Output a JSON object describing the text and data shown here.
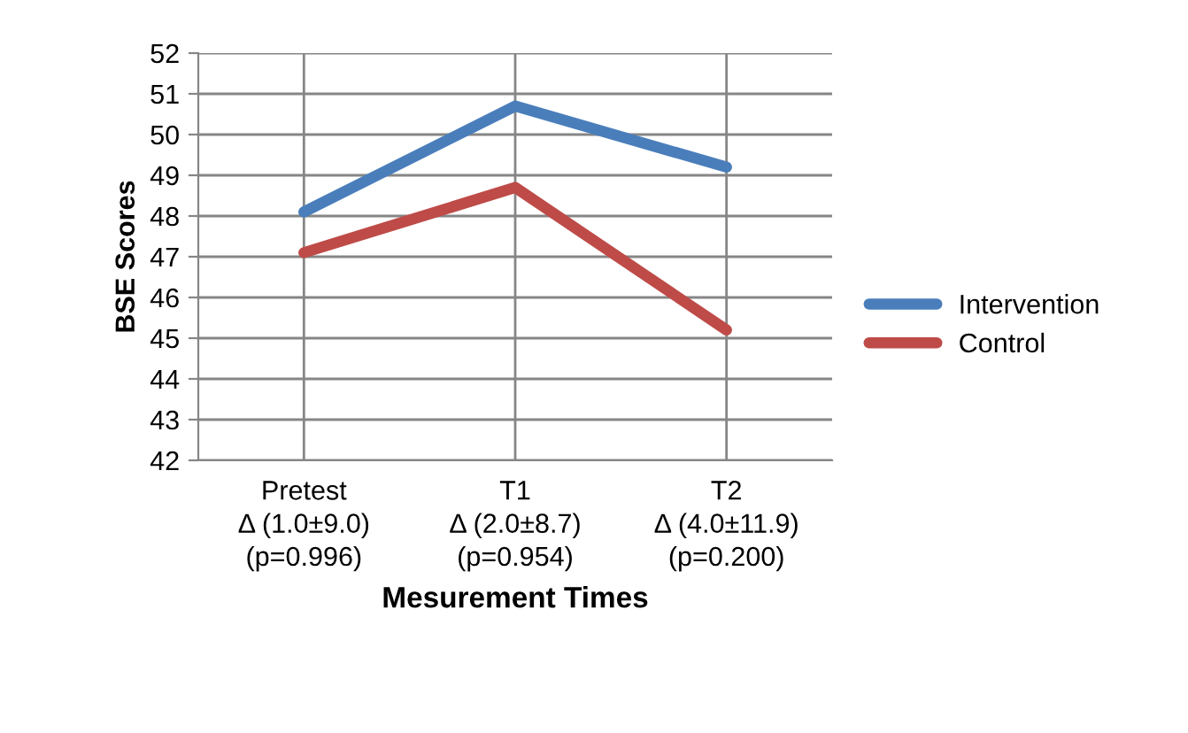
{
  "chart_data": {
    "type": "line",
    "categories": [
      "Pretest\nΔ (1.0±9.0)\n(p=0.996)",
      "T1\nΔ (2.0±8.7)\n(p=0.954)",
      "T2\nΔ (4.0±11.9)\n(p=0.200)"
    ],
    "series": [
      {
        "name": "Intervention",
        "color": "#4a7ebb",
        "values": [
          48.1,
          50.7,
          49.2
        ]
      },
      {
        "name": "Control",
        "color": "#be4b48",
        "values": [
          47.1,
          48.7,
          45.2
        ]
      }
    ],
    "xlabel": "Mesurement Times",
    "ylabel": "BSE Scores",
    "ylim": [
      42,
      52
    ],
    "yticks": [
      42,
      43,
      44,
      45,
      46,
      47,
      48,
      49,
      50,
      51,
      52
    ],
    "grid": true,
    "legend": "right",
    "marker": "none",
    "line_style": "solid"
  }
}
